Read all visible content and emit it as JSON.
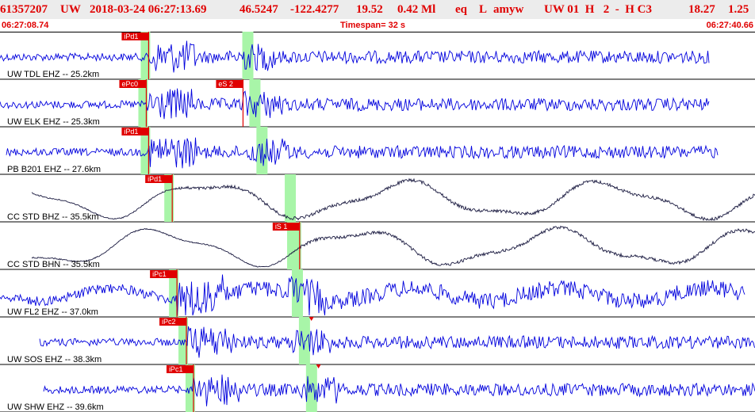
{
  "event": {
    "id": "61357207",
    "network": "UW",
    "origin_time": "2018-03-24 06:27:13.69",
    "latitude": "46.5247",
    "longitude": "-122.4277",
    "depth": "19.52",
    "magnitude": "0.42 Ml",
    "type": "eq",
    "flag": "L",
    "author": "amyw",
    "solution": "UW 01  H   2  -  H C3",
    "rms": "18.27",
    "gap": "1.25"
  },
  "timebar": {
    "start": "06:27:08.74",
    "timespan": "Timespan=  32 s",
    "end": "06:27:40.66"
  },
  "colors": {
    "header_text": "#e00000",
    "trace_blue": "#0000dd",
    "trace_dark": "#1a1a40",
    "window_green": "#a8f5a8",
    "pick_red": "#e00000"
  },
  "channels": [
    {
      "label": "UW TDL EHZ -- 25.2km",
      "seismo": "blue",
      "picks": [
        {
          "label": "iPd1",
          "t": 6.3
        }
      ]
    },
    {
      "label": "UW ELK EHZ -- 25.3km",
      "seismo": "blue",
      "picks": [
        {
          "label": "ePc0",
          "t": 6.2
        },
        {
          "label": "eS 2",
          "t": 10.3
        }
      ]
    },
    {
      "label": "PB B201 EHZ -- 27.6km",
      "seismo": "blue",
      "picks": [
        {
          "label": "iPd1",
          "t": 6.3
        }
      ]
    },
    {
      "label": "CC STD BHZ -- 35.5km",
      "seismo": "dark",
      "picks": [
        {
          "label": "iPd1",
          "t": 7.3
        }
      ]
    },
    {
      "label": "CC STD BHN -- 35.5km",
      "seismo": "dark",
      "picks": [
        {
          "label": "iS 1",
          "t": 12.7
        }
      ]
    },
    {
      "label": "UW FL2 EHZ -- 37.0km",
      "seismo": "blue",
      "picks": [
        {
          "label": "iPc1",
          "t": 7.5
        }
      ]
    },
    {
      "label": "UW SOS EHZ -- 38.3km",
      "seismo": "blue",
      "picks": [
        {
          "label": "iPc2",
          "t": 7.9
        }
      ]
    },
    {
      "label": "UW SHW EHZ -- 39.6km",
      "seismo": "blue",
      "picks": [
        {
          "label": "iPc1",
          "t": 8.2
        }
      ]
    }
  ],
  "icons": {
    "pick_marker": "red-triangle-icon"
  }
}
